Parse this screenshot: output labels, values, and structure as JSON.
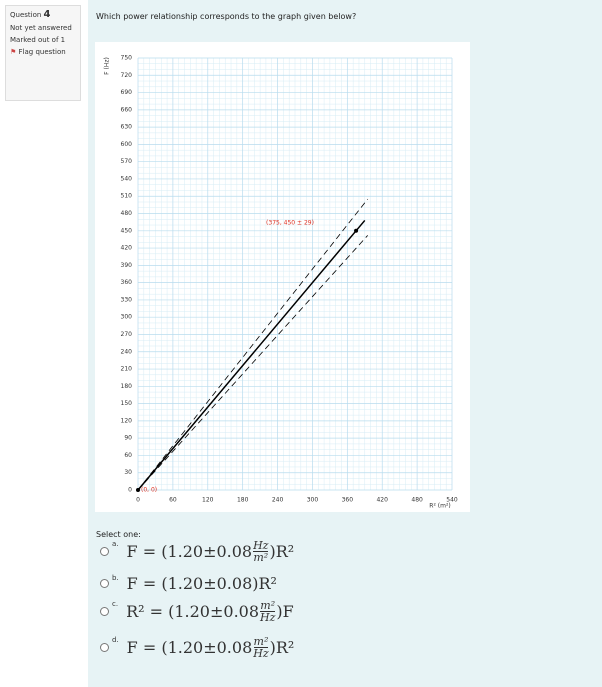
{
  "sidebar": {
    "question_label": "Question",
    "question_number": "4",
    "status": "Not yet answered",
    "marked": "Marked out of 1",
    "flag": "Flag question"
  },
  "question": "Which power relationship corresponds to the graph given below?",
  "chart_data": {
    "type": "line",
    "x_label": "R² (m²)",
    "y_label": "F (Hz)",
    "xlim": [
      0,
      540
    ],
    "xticks": [
      0,
      60,
      120,
      180,
      240,
      300,
      360,
      420,
      480,
      540
    ],
    "ylim": [
      0,
      750
    ],
    "yticks": [
      0,
      30,
      60,
      90,
      120,
      150,
      180,
      210,
      240,
      270,
      300,
      330,
      360,
      390,
      420,
      450,
      480,
      510,
      540,
      570,
      600,
      630,
      660,
      690,
      720,
      750
    ],
    "grid": true,
    "series": [
      {
        "color": "#000000",
        "style": "solid",
        "x": [
          0,
          390
        ],
        "values": [
          0,
          468
        ]
      },
      {
        "color": "#000000",
        "style": "dashed",
        "x": [
          0,
          395
        ],
        "values": [
          0,
          505
        ]
      },
      {
        "color": "#000000",
        "style": "dashed",
        "x": [
          0,
          395
        ],
        "values": [
          0,
          442
        ]
      }
    ],
    "points": {
      "color": "#000000",
      "x": [
        0,
        375
      ],
      "values": [
        0,
        450
      ]
    },
    "annotations": [
      {
        "text": "(0, 0)",
        "color": "#e03020"
      },
      {
        "text": "(375, 450 ± 29)",
        "color": "#e03020"
      }
    ]
  },
  "prompt": "Select one:",
  "options": [
    {
      "letter": "a.",
      "left": "F = (1.20±0.08",
      "num": "Hz",
      "den": "m²",
      "right": ")R²"
    },
    {
      "letter": "b.",
      "left": "F = (1.20±0.08)R²"
    },
    {
      "letter": "c.",
      "left": "R² = (1.20±0.08",
      "num": "m²",
      "den": "Hz",
      "right": ")F"
    },
    {
      "letter": "d.",
      "left": "F = (1.20±0.08",
      "num": "m²",
      "den": "Hz",
      "right": ")R²"
    }
  ]
}
